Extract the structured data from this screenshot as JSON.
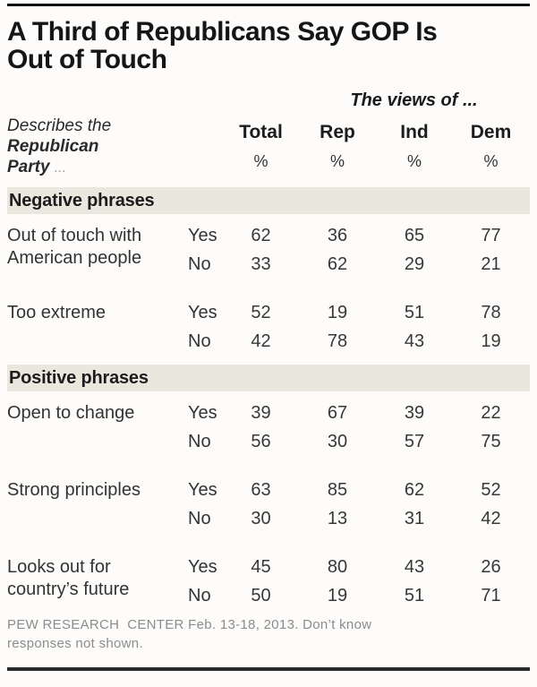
{
  "title": {
    "line1": "A Third of Republicans Say GOP Is",
    "line2": "Out of Touch"
  },
  "table": {
    "views_header": "The views of ...",
    "stub": {
      "line1": "Describes the",
      "line2": "Republican",
      "line3": "Party",
      "ellipsis": "..."
    },
    "columns": {
      "total": "Total",
      "rep": "Rep",
      "ind": "Ind",
      "dem": "Dem"
    },
    "percent": "%",
    "yes_label": "Yes",
    "no_label": "No"
  },
  "sections": [
    {
      "label": "Negative phrases",
      "groups": [
        {
          "phrase_line1": "Out of touch with",
          "phrase_line2": "American people",
          "yes": [
            "62",
            "36",
            "65",
            "77"
          ],
          "no": [
            "33",
            "62",
            "29",
            "21"
          ]
        },
        {
          "phrase_line1": "Too extreme",
          "phrase_line2": "",
          "yes": [
            "52",
            "19",
            "51",
            "78"
          ],
          "no": [
            "42",
            "78",
            "43",
            "19"
          ]
        }
      ]
    },
    {
      "label": "Positive phrases",
      "groups": [
        {
          "phrase_line1": "Open to change",
          "phrase_line2": "",
          "yes": [
            "39",
            "67",
            "39",
            "22"
          ],
          "no": [
            "56",
            "30",
            "57",
            "75"
          ]
        },
        {
          "phrase_line1": "Strong principles",
          "phrase_line2": "",
          "yes": [
            "63",
            "85",
            "62",
            "52"
          ],
          "no": [
            "30",
            "13",
            "31",
            "42"
          ]
        },
        {
          "phrase_line1": "Looks out for",
          "phrase_line2": "country’s future",
          "yes": [
            "45",
            "80",
            "43",
            "26"
          ],
          "no": [
            "50",
            "19",
            "51",
            "71"
          ]
        }
      ]
    }
  ],
  "footer": "PEW RESEARCH  CENTER Feb. 13-18, 2013. Don’t know responses not shown.",
  "chart_data": {
    "type": "table",
    "title": "A Third of Republicans Say GOP Is Out of Touch",
    "column_group_header": "The views of ...",
    "stub_header": "Describes the Republican Party ...",
    "columns": [
      "Total",
      "Rep",
      "Ind",
      "Dem"
    ],
    "units": "%",
    "sections": [
      {
        "section": "Negative phrases",
        "rows": [
          {
            "phrase": "Out of touch with American people",
            "Yes": [
              62,
              36,
              65,
              77
            ],
            "No": [
              33,
              62,
              29,
              21
            ]
          },
          {
            "phrase": "Too extreme",
            "Yes": [
              52,
              19,
              51,
              78
            ],
            "No": [
              42,
              78,
              43,
              19
            ]
          }
        ]
      },
      {
        "section": "Positive phrases",
        "rows": [
          {
            "phrase": "Open to change",
            "Yes": [
              39,
              67,
              39,
              22
            ],
            "No": [
              56,
              30,
              57,
              75
            ]
          },
          {
            "phrase": "Strong principles",
            "Yes": [
              63,
              85,
              62,
              52
            ],
            "No": [
              30,
              13,
              31,
              42
            ]
          },
          {
            "phrase": "Looks out for country's future",
            "Yes": [
              45,
              80,
              43,
              26
            ],
            "No": [
              50,
              19,
              51,
              71
            ]
          }
        ]
      }
    ],
    "source": "PEW RESEARCH CENTER Feb. 13-18, 2013. Don't know responses not shown.",
    "layout": {
      "section_header_bg": "#eae7df",
      "grid": "off",
      "legend": "none"
    }
  }
}
